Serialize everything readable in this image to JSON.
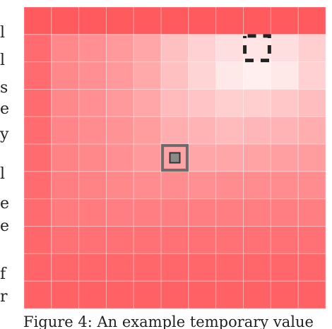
{
  "left_text_fragments": [
    "l",
    "l",
    "s",
    "e",
    "y",
    "l",
    "e",
    "e",
    "f",
    "r"
  ],
  "figure": {
    "grid_size": 11,
    "colors": {
      "base": "#ff5a5e",
      "light": "#ffffff",
      "gridline": "#ffffff",
      "agent_marker": "#6b6b6b",
      "agent_fill": "#8a8a8a",
      "goal_marker": "#222222"
    },
    "cell_lightness": [
      [
        0.0,
        0.0,
        0.0,
        0.0,
        0.0,
        0.0,
        0.0,
        0.0,
        0.0,
        0.0,
        0.0
      ],
      [
        0.1,
        0.28,
        0.32,
        0.38,
        0.46,
        0.62,
        0.72,
        0.8,
        0.84,
        0.8,
        0.7
      ],
      [
        0.1,
        0.28,
        0.32,
        0.38,
        0.48,
        0.62,
        0.74,
        0.86,
        0.9,
        0.86,
        0.72
      ],
      [
        0.1,
        0.28,
        0.32,
        0.38,
        0.46,
        0.58,
        0.64,
        0.7,
        0.7,
        0.66,
        0.6
      ],
      [
        0.1,
        0.26,
        0.3,
        0.34,
        0.4,
        0.5,
        0.54,
        0.58,
        0.56,
        0.54,
        0.5
      ],
      [
        0.1,
        0.24,
        0.28,
        0.32,
        0.38,
        0.44,
        0.46,
        0.46,
        0.44,
        0.42,
        0.4
      ],
      [
        0.1,
        0.22,
        0.24,
        0.28,
        0.3,
        0.3,
        0.32,
        0.3,
        0.3,
        0.3,
        0.3
      ],
      [
        0.1,
        0.2,
        0.2,
        0.22,
        0.22,
        0.22,
        0.22,
        0.22,
        0.22,
        0.22,
        0.22
      ],
      [
        0.08,
        0.14,
        0.14,
        0.14,
        0.14,
        0.14,
        0.14,
        0.14,
        0.14,
        0.14,
        0.14
      ],
      [
        0.06,
        0.08,
        0.08,
        0.08,
        0.08,
        0.08,
        0.08,
        0.08,
        0.08,
        0.08,
        0.08
      ],
      [
        0.04,
        0.04,
        0.04,
        0.04,
        0.04,
        0.04,
        0.04,
        0.04,
        0.04,
        0.04,
        0.04
      ]
    ],
    "agent_cell": {
      "row": 5,
      "col": 5
    },
    "goal_cell": {
      "row": 1,
      "col": 8
    }
  },
  "caption": "Figure 4:  An example temporary value"
}
